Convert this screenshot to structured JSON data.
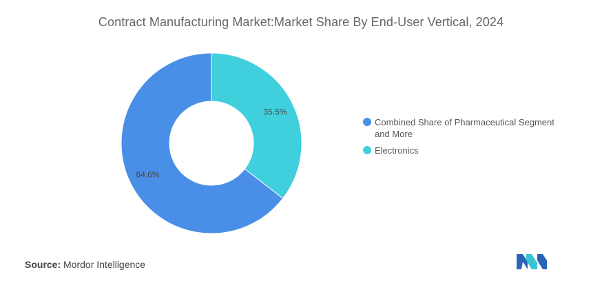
{
  "title": "Contract Manufacturing Market:Market Share By End-User Vertical, 2024",
  "source_label": "Source:",
  "source_value": "Mordor Intelligence",
  "colors": {
    "pharma": "#4a8fe7",
    "electronics": "#40cfdc"
  },
  "chart_data": {
    "type": "pie",
    "style": "donut",
    "title": "Contract Manufacturing Market:Market Share By End-User Vertical, 2024",
    "legend_position": "right",
    "series": [
      {
        "name": "Combined Share of Pharmaceutical Segment and More",
        "value": 64.6,
        "label": "64.6%",
        "color": "#4a8fe7"
      },
      {
        "name": "Electronics",
        "value": 35.5,
        "label": "35.5%",
        "color": "#40cfdc"
      }
    ]
  },
  "logo": {
    "icon": "mordor-intelligence-logo-icon"
  }
}
